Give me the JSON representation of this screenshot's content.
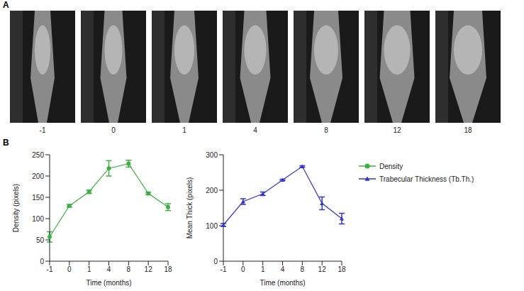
{
  "panel_a": {
    "letter": "A",
    "image_labels": [
      "-1",
      "0",
      "1",
      "4",
      "8",
      "12",
      "18"
    ]
  },
  "panel_b": {
    "letter": "B",
    "legend": "right"
  },
  "chart_data": [
    {
      "type": "line",
      "categories": [
        "-1",
        "0",
        "1",
        "4",
        "8",
        "12",
        "18"
      ],
      "x_label": "Time (months)",
      "y_label": "Density (pixels)",
      "ylim": [
        0,
        250
      ],
      "yticks": [
        0,
        50,
        100,
        150,
        200,
        250
      ],
      "series": [
        {
          "name": "Density",
          "color": "#3cb043",
          "marker": "circle",
          "values": [
            57,
            130,
            163,
            218,
            229,
            159,
            127
          ],
          "errors": [
            12,
            3,
            4,
            18,
            8,
            3,
            8
          ]
        }
      ]
    },
    {
      "type": "line",
      "categories": [
        "-1",
        "0",
        "1",
        "4",
        "8",
        "12",
        "18"
      ],
      "x_label": "Time (months)",
      "y_label": "Mean Thick (pixels)",
      "ylim": [
        0,
        300
      ],
      "yticks": [
        0,
        100,
        200,
        300
      ],
      "series": [
        {
          "name": "Trabecular Thickness (Tb.Th.)",
          "color": "#3333cc",
          "marker": "triangle",
          "values": [
            102,
            168,
            190,
            229,
            267,
            163,
            120
          ],
          "errors": [
            4,
            8,
            5,
            2,
            2,
            18,
            15
          ]
        }
      ]
    }
  ]
}
